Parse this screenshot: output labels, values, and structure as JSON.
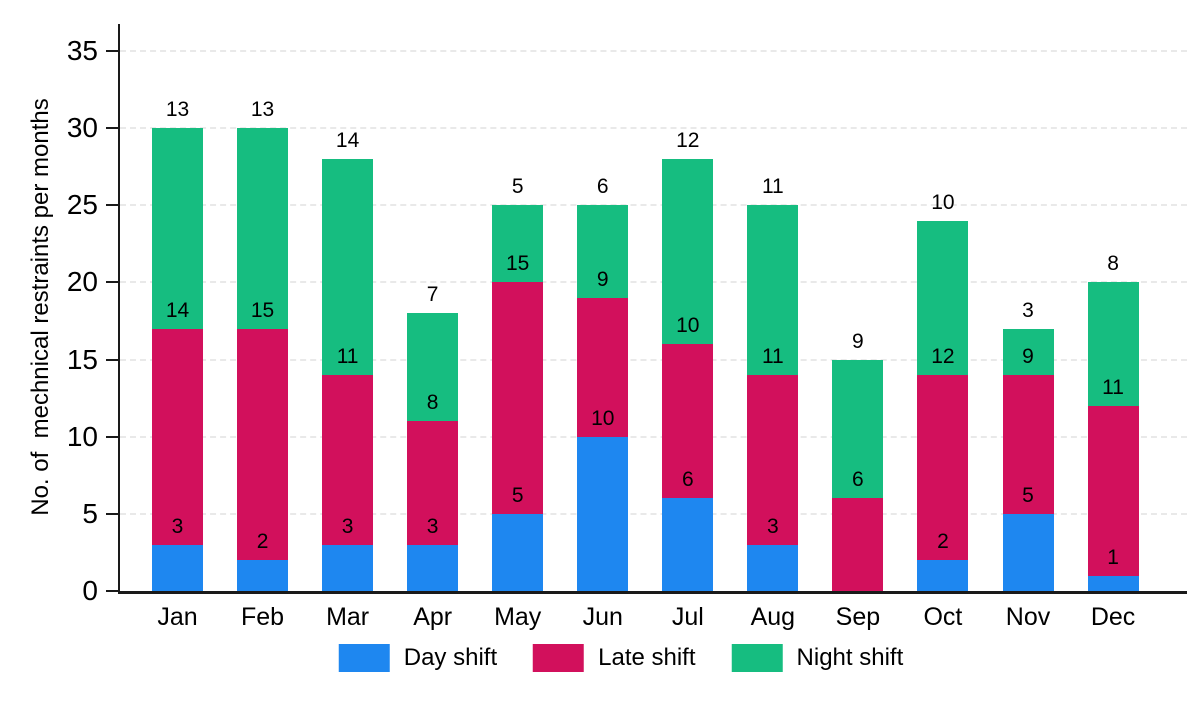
{
  "chart_data": {
    "type": "bar",
    "stacked": true,
    "title": "",
    "ylabel": "No. of  mechnical restraints per months",
    "xlabel": "",
    "categories": [
      "Jan",
      "Feb",
      "Mar",
      "Apr",
      "May",
      "Jun",
      "Jul",
      "Aug",
      "Sep",
      "Oct",
      "Nov",
      "Dec"
    ],
    "series": [
      {
        "name": "Day shift",
        "color": "#1E87F0",
        "values": [
          3,
          2,
          3,
          3,
          5,
          10,
          6,
          3,
          0,
          2,
          5,
          1
        ]
      },
      {
        "name": "Late shift",
        "color": "#D2105C",
        "values": [
          14,
          15,
          11,
          8,
          15,
          9,
          10,
          11,
          6,
          12,
          9,
          11
        ]
      },
      {
        "name": "Night shift",
        "color": "#16BD80",
        "values": [
          13,
          13,
          14,
          7,
          5,
          6,
          12,
          11,
          9,
          10,
          3,
          8
        ]
      }
    ],
    "y_ticks": [
      0,
      5,
      10,
      15,
      20,
      25,
      30,
      35
    ],
    "ylim": [
      0,
      35.4
    ],
    "grid": "horizontal-dashed",
    "gridline_color": "#E9E9E9",
    "axis_color": "#1A1A1A",
    "value_label_color": "#000000",
    "value_labels": true,
    "legend_position": "bottom"
  }
}
